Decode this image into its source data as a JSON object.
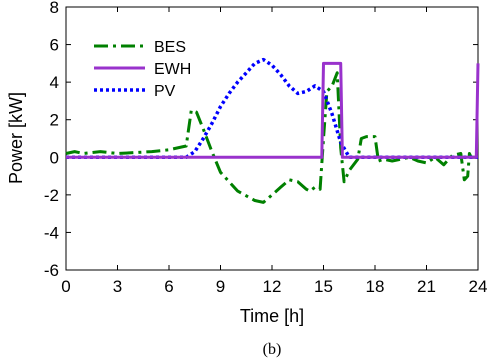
{
  "chart_data": {
    "type": "line",
    "xlabel": "Time [h]",
    "ylabel": "Power [kW]",
    "xlim": [
      0,
      24
    ],
    "ylim": [
      -6,
      8
    ],
    "xticks": [
      0,
      3,
      6,
      9,
      12,
      15,
      18,
      21,
      24
    ],
    "yticks": [
      -6,
      -4,
      -2,
      0,
      2,
      4,
      6,
      8
    ],
    "grid": false,
    "legend_position": "top-left",
    "caption": "(b)",
    "series": [
      {
        "name": "BES",
        "color": "#008000",
        "style": "dash-dot",
        "x": [
          0,
          0.5,
          1,
          2,
          3,
          4,
          5,
          6,
          6.5,
          7,
          7.3,
          7.6,
          8,
          8.5,
          9,
          10,
          11,
          11.5,
          12,
          12.5,
          13,
          13.5,
          14,
          14.2,
          14.5,
          14.8,
          15,
          15.2,
          15.5,
          15.8,
          16,
          16.2,
          16.5,
          17,
          17.2,
          17.5,
          18,
          18.2,
          18.5,
          19,
          19.5,
          20,
          20.5,
          21,
          21.5,
          22,
          22.5,
          23,
          23.2,
          23.4,
          23.5,
          23.6,
          23.7,
          24
        ],
        "y": [
          0.2,
          0.3,
          0.2,
          0.3,
          0.2,
          0.25,
          0.3,
          0.4,
          0.5,
          0.6,
          2.5,
          2.4,
          1.5,
          0.3,
          -0.8,
          -1.8,
          -2.3,
          -2.4,
          -2.0,
          -1.6,
          -1.2,
          -1.3,
          -1.7,
          -1.8,
          -1.6,
          -1.7,
          1.0,
          3.5,
          3.8,
          4.5,
          0.5,
          -1.3,
          -0.7,
          -0.1,
          1.0,
          1.1,
          1.1,
          -0.2,
          -0.1,
          -0.2,
          -0.1,
          0.0,
          -0.2,
          -0.3,
          0.0,
          -0.4,
          0.1,
          0.2,
          -1.2,
          -1.0,
          0.2,
          0.0,
          0.0,
          0.0
        ]
      },
      {
        "name": "EWH",
        "color": "#9932CC",
        "style": "solid",
        "x": [
          0,
          14.9,
          15,
          16,
          16.1,
          23.9,
          24
        ],
        "y": [
          0,
          0,
          5,
          5,
          0,
          0,
          5
        ]
      },
      {
        "name": "PV",
        "color": "#0000FF",
        "style": "dotted",
        "x": [
          0,
          7,
          7.5,
          8,
          8.5,
          9,
          9.5,
          10,
          10.5,
          11,
          11.5,
          12,
          12.5,
          13,
          13.5,
          14,
          14.5,
          15,
          15.5,
          16,
          16.5,
          24
        ],
        "y": [
          0,
          0,
          0.3,
          1.0,
          1.8,
          2.7,
          3.4,
          4.0,
          4.5,
          5.0,
          5.2,
          4.9,
          4.4,
          3.8,
          3.4,
          3.5,
          3.8,
          3.5,
          2.3,
          0.8,
          0,
          0
        ]
      }
    ]
  }
}
